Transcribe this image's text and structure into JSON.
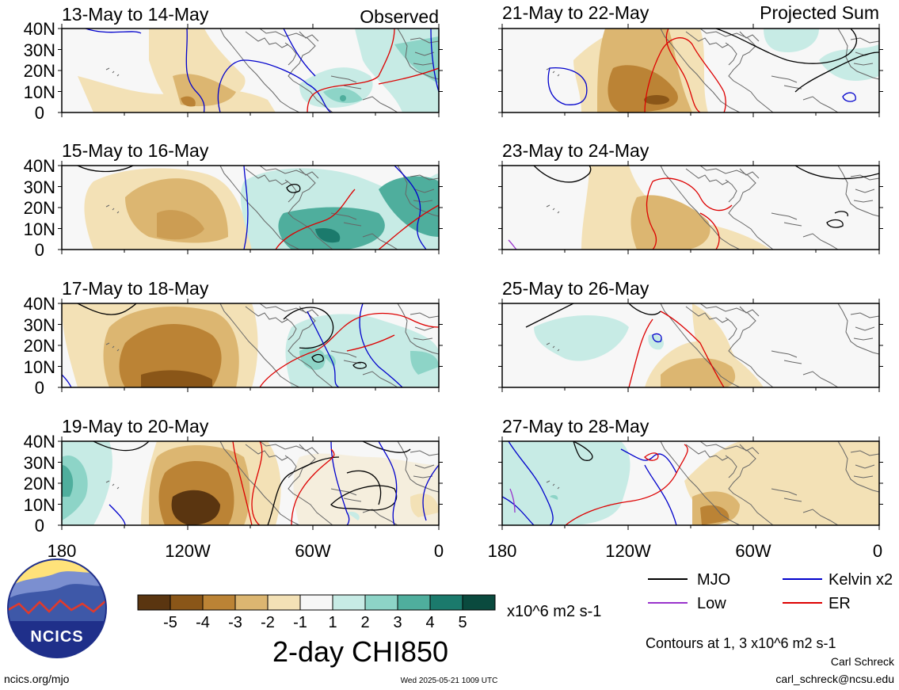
{
  "panels": [
    {
      "id": "p1",
      "title": "13-May to 14-May",
      "tag": "Observed"
    },
    {
      "id": "p2",
      "title": "21-May to 22-May",
      "tag": "Projected Sum"
    },
    {
      "id": "p3",
      "title": "15-May to 16-May",
      "tag": ""
    },
    {
      "id": "p4",
      "title": "23-May to 24-May",
      "tag": ""
    },
    {
      "id": "p5",
      "title": "17-May to 18-May",
      "tag": ""
    },
    {
      "id": "p6",
      "title": "25-May to 26-May",
      "tag": ""
    },
    {
      "id": "p7",
      "title": "19-May to 20-May",
      "tag": ""
    },
    {
      "id": "p8",
      "title": "27-May to 28-May",
      "tag": ""
    }
  ],
  "lat_labels": [
    "40N",
    "30N",
    "20N",
    "10N",
    "0"
  ],
  "lon_labels": [
    "180",
    "120W",
    "60W",
    "0"
  ],
  "colorbar": {
    "colors": [
      "#5a3510",
      "#8a5618",
      "#bb8335",
      "#dcb671",
      "#f3e1b6",
      "#f7f7f7",
      "#c7ebe5",
      "#8dd4c7",
      "#4fae9d",
      "#1b7a6c",
      "#0a4a3e"
    ],
    "labels": [
      "-5",
      "-4",
      "-3",
      "-2",
      "-1",
      "1",
      "2",
      "3",
      "4",
      "5"
    ],
    "units": "x10^6 m2 s-1",
    "title": "2-day CHI850"
  },
  "legend": {
    "items": [
      {
        "label": "MJO",
        "color": "#000000"
      },
      {
        "label": "Kelvin x2",
        "color": "#0000cc"
      },
      {
        "label": "Low",
        "color": "#9933cc"
      },
      {
        "label": "ER",
        "color": "#dd0000"
      }
    ],
    "note": "Contours at 1, 3 x10^6 m2 s-1"
  },
  "footer": {
    "logo_text": "NCICS",
    "site": "ncics.org/mjo",
    "timestamp": "Wed 2025-05-21 1009 UTC",
    "author": "Carl Schreck",
    "email": "carl_schreck@ncsu.edu"
  }
}
